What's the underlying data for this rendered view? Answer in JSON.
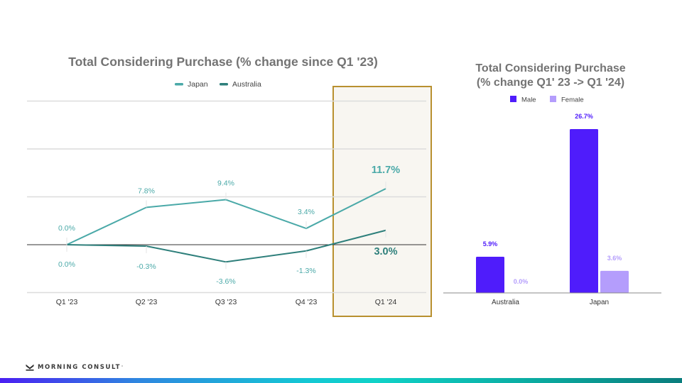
{
  "brand": {
    "name": "MORNING CONSULT",
    "trademark": "°",
    "logo_icon": "morning-consult-m-logo"
  },
  "colors": {
    "japan_line": "#4aa9a8",
    "australia_line": "#2e7f7b",
    "male_bar": "#4f1cfb",
    "female_bar": "#b49dfc",
    "highlight_border": "#b8902f",
    "highlight_fill": "#f8f6f1",
    "title_gray": "#737373"
  },
  "chart_data": [
    {
      "type": "line",
      "title": "Total Considering Purchase (% change since Q1 '23)",
      "xlabel": "",
      "ylabel": "",
      "categories": [
        "Q1 '23",
        "Q2 '23",
        "Q3 '23",
        "Q4 '23",
        "Q1 '24"
      ],
      "series": [
        {
          "name": "Japan",
          "values": [
            0.0,
            7.8,
            9.4,
            3.4,
            11.7
          ],
          "labels": [
            "0.0%",
            "7.8%",
            "9.4%",
            "3.4%",
            "11.7%"
          ]
        },
        {
          "name": "Australia",
          "values": [
            0.0,
            -0.3,
            -3.6,
            -1.3,
            3.0
          ],
          "labels": [
            "0.0%",
            "-0.3%",
            "-3.6%",
            "-1.3%",
            "3.0%"
          ]
        }
      ],
      "ylim": [
        -10,
        30
      ],
      "gridlines": [
        -10,
        0,
        10,
        20,
        30
      ],
      "grid": true,
      "legend": "top-center",
      "highlighted_category": "Q1 '24"
    },
    {
      "type": "bar",
      "title": "Total Considering Purchase",
      "subtitle": "(% change Q1' 23 -> Q1 '24)",
      "categories": [
        "Australia",
        "Japan"
      ],
      "series": [
        {
          "name": "Male",
          "values": [
            5.9,
            26.7
          ],
          "labels": [
            "5.9%",
            "26.7%"
          ]
        },
        {
          "name": "Female",
          "values": [
            0.0,
            3.6
          ],
          "labels": [
            "0.0%",
            "3.6%"
          ]
        }
      ],
      "ylim": [
        0,
        26.7
      ],
      "grid": false,
      "legend": "top-center"
    }
  ]
}
